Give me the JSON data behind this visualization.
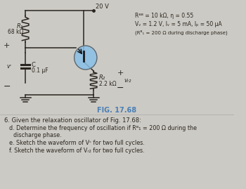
{
  "bg_color": "#cccac4",
  "title_color": "#4a7fb5",
  "title": "FIG. 17.68",
  "text_color": "#2a2520",
  "supply_voltage": "20 V",
  "R1_label": "R₁",
  "R1_value": "68 kΩ",
  "C_label": "C",
  "C_value": "0.1 μF",
  "vc_label": "vᶜ",
  "R2_label": "R₂",
  "R2_value": "2.2 kΩ",
  "vR2_label": "vᵣ₂",
  "param1": "Rᴬᴮ = 10 kΩ, η = 0.55",
  "param2": "Vᵥ = 1.2 V, Iᵥ = 5 mA, Iₚ = 50 μA",
  "param3": "(Rᴮ₁ = 200 Ω during discharge phase)",
  "q6": "6. Given the relaxation oscillator of Fig. 17.68:",
  "qd": "d. Determine the frequency of oscillation if Rᴮ₁ = 200 Ω during the",
  "qd2": "discharge phase.",
  "qe": "e. Sketch the waveform of Vᶜ for two full cycles.",
  "qf": "f. Sketch the waveform of Vᵣ₂ for two full cycles."
}
